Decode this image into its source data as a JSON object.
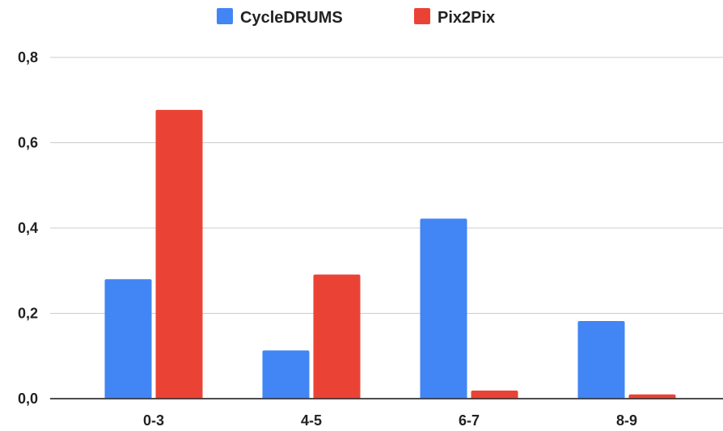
{
  "chart_data": {
    "type": "bar",
    "title": "",
    "xlabel": "",
    "ylabel": "",
    "categories": [
      "0-3",
      "4-5",
      "6-7",
      "8-9"
    ],
    "series": [
      {
        "name": "CycleDRUMS",
        "color": "#4285f4",
        "values": [
          0.28,
          0.113,
          0.422,
          0.182
        ]
      },
      {
        "name": "Pix2Pix",
        "color": "#ea4335",
        "values": [
          0.677,
          0.291,
          0.019,
          0.01
        ]
      }
    ],
    "ylim": [
      0,
      0.8
    ],
    "yticks": [
      "0,0",
      "0,2",
      "0,4",
      "0,6",
      "0,8"
    ],
    "grid": true,
    "legend_position": "top-center"
  }
}
